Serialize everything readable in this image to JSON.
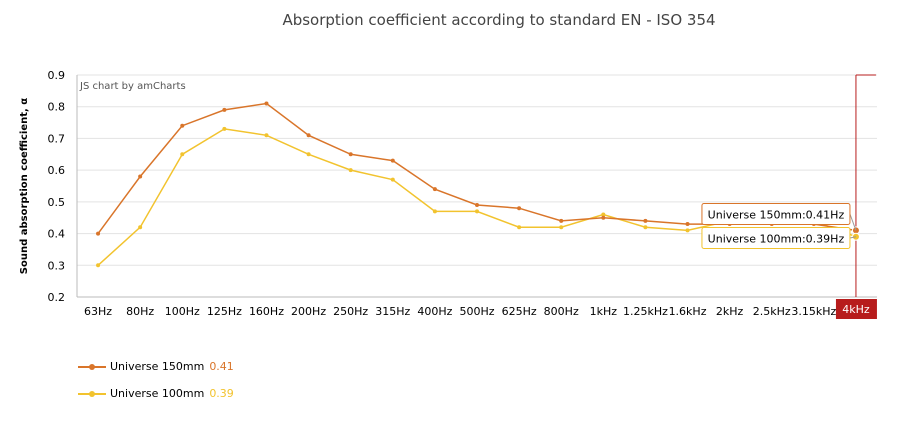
{
  "chart_data": {
    "type": "line",
    "title": "Absorption coefficient according to standard EN - ISO 354",
    "ylabel": "Sound absorption coefficient, α",
    "xlabel": "",
    "ylim": [
      0.2,
      0.9
    ],
    "yticks": [
      "0.2",
      "0.3",
      "0.4",
      "0.5",
      "0.6",
      "0.7",
      "0.8",
      "0.9"
    ],
    "grid": true,
    "categories": [
      "63Hz",
      "80Hz",
      "100Hz",
      "125Hz",
      "160Hz",
      "200Hz",
      "250Hz",
      "315Hz",
      "400Hz",
      "500Hz",
      "625Hz",
      "800Hz",
      "1kHz",
      "1.25kHz",
      "1.6kHz",
      "2kHz",
      "2.5kHz",
      "3.15kHz",
      "4kHz"
    ],
    "series": [
      {
        "name": "Universe 150mm",
        "color": "#d9752a",
        "values": [
          0.4,
          0.58,
          0.74,
          0.79,
          0.81,
          0.71,
          0.65,
          0.63,
          0.54,
          0.49,
          0.48,
          0.44,
          0.45,
          0.44,
          0.43,
          0.43,
          0.43,
          0.43,
          0.41
        ]
      },
      {
        "name": "Universe 100mm",
        "color": "#f2c32e",
        "values": [
          0.3,
          0.42,
          0.65,
          0.73,
          0.71,
          0.65,
          0.6,
          0.57,
          0.47,
          0.47,
          0.42,
          0.42,
          0.46,
          0.42,
          0.41,
          0.44,
          0.44,
          0.44,
          0.39
        ]
      }
    ],
    "credit": "JS chart by amCharts",
    "cursor": {
      "category": "4kHz",
      "color": "#b71c1c",
      "balloons": [
        "Universe 150mm:0.41Hz",
        "Universe 100mm:0.39Hz"
      ]
    },
    "legend": {
      "position": "bottom-left",
      "items": [
        {
          "name": "Universe 150mm",
          "value": "0.41"
        },
        {
          "name": "Universe 100mm",
          "value": "0.39"
        }
      ]
    }
  }
}
